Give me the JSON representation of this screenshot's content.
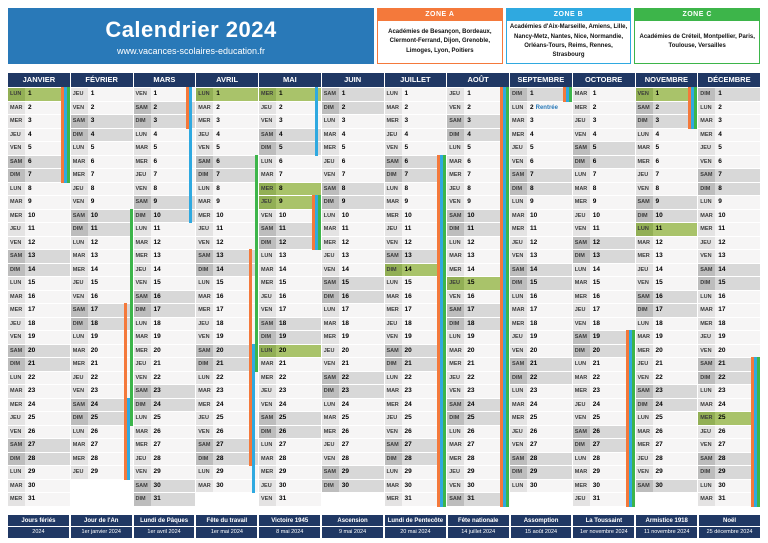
{
  "header": {
    "title": "Calendrier 2024",
    "url": "www.vacances-scolaires-education.fr"
  },
  "zones": [
    {
      "label": "ZONE A",
      "color": "#F4793B",
      "academies": "Académies de Besançon, Bordeaux, Clermont-Ferrand, Dijon, Grenoble, Limoges, Lyon, Poitiers"
    },
    {
      "label": "ZONE B",
      "color": "#2FA9E0",
      "academies": "Académies d'Aix-Marseille, Amiens, Lille, Nancy-Metz, Nantes, Nice, Normandie, Orléans-Tours, Reims, Rennes, Strasbourg"
    },
    {
      "label": "ZONE C",
      "color": "#3DB54A",
      "academies": "Académies de Créteil, Montpellier, Paris, Toulouse, Versailles"
    }
  ],
  "weekdays": [
    "LUN",
    "MAR",
    "MER",
    "JEU",
    "VEN",
    "SAM",
    "DIM"
  ],
  "months": [
    {
      "name": "JANVIER",
      "days": 31,
      "start": 0,
      "holidays": [
        1
      ],
      "notes": {},
      "vac": {
        "A": [
          [
            1,
            7
          ]
        ],
        "B": [
          [
            1,
            7
          ]
        ],
        "C": [
          [
            1,
            7
          ]
        ]
      }
    },
    {
      "name": "FÉVRIER",
      "days": 29,
      "start": 3,
      "holidays": [],
      "notes": {},
      "vac": {
        "A": [
          [
            17,
            29
          ]
        ],
        "B": [
          [
            24,
            29
          ]
        ],
        "C": [
          [
            10,
            25
          ]
        ]
      }
    },
    {
      "name": "MARS",
      "days": 31,
      "start": 4,
      "holidays": [],
      "notes": {},
      "vac": {
        "A": [
          [
            1,
            3
          ]
        ],
        "B": [
          [
            1,
            10
          ]
        ],
        "C": []
      }
    },
    {
      "name": "AVRIL",
      "days": 30,
      "start": 0,
      "holidays": [
        1
      ],
      "notes": {},
      "vac": {
        "A": [
          [
            13,
            28
          ]
        ],
        "B": [
          [
            20,
            30
          ]
        ],
        "C": [
          [
            6,
            21
          ]
        ]
      }
    },
    {
      "name": "MAI",
      "days": 31,
      "start": 2,
      "holidays": [
        1,
        8,
        9,
        20
      ],
      "notes": {},
      "vac": {
        "A": [
          [
            9,
            12
          ]
        ],
        "B": [
          [
            1,
            5
          ],
          [
            9,
            12
          ]
        ],
        "C": [
          [
            9,
            12
          ]
        ]
      }
    },
    {
      "name": "JUIN",
      "days": 30,
      "start": 5,
      "holidays": [],
      "notes": {},
      "vac": {
        "A": [],
        "B": [],
        "C": []
      }
    },
    {
      "name": "JUILLET",
      "days": 31,
      "start": 0,
      "holidays": [
        14
      ],
      "notes": {},
      "vac": {
        "A": [
          [
            6,
            31
          ]
        ],
        "B": [
          [
            6,
            31
          ]
        ],
        "C": [
          [
            6,
            31
          ]
        ]
      }
    },
    {
      "name": "AOÛT",
      "days": 31,
      "start": 3,
      "holidays": [
        15
      ],
      "notes": {},
      "vac": {
        "A": [
          [
            1,
            31
          ]
        ],
        "B": [
          [
            1,
            31
          ]
        ],
        "C": [
          [
            1,
            31
          ]
        ]
      }
    },
    {
      "name": "SEPTEMBRE",
      "days": 30,
      "start": 6,
      "holidays": [],
      "notes": {
        "2": "Rentrée"
      },
      "vac": {
        "A": [
          [
            1,
            1
          ]
        ],
        "B": [
          [
            1,
            1
          ]
        ],
        "C": [
          [
            1,
            1
          ]
        ]
      }
    },
    {
      "name": "OCTOBRE",
      "days": 31,
      "start": 1,
      "holidays": [],
      "notes": {},
      "vac": {
        "A": [
          [
            19,
            31
          ]
        ],
        "B": [
          [
            19,
            31
          ]
        ],
        "C": [
          [
            19,
            31
          ]
        ]
      }
    },
    {
      "name": "NOVEMBRE",
      "days": 30,
      "start": 4,
      "holidays": [
        1,
        11
      ],
      "notes": {},
      "vac": {
        "A": [
          [
            1,
            3
          ]
        ],
        "B": [
          [
            1,
            3
          ]
        ],
        "C": [
          [
            1,
            3
          ]
        ]
      }
    },
    {
      "name": "DÉCEMBRE",
      "days": 31,
      "start": 6,
      "holidays": [
        25
      ],
      "notes": {},
      "vac": {
        "A": [
          [
            21,
            31
          ]
        ],
        "B": [
          [
            21,
            31
          ]
        ],
        "C": [
          [
            21,
            31
          ]
        ]
      }
    }
  ],
  "legend": [
    {
      "title": "Jours fériés",
      "date": "2024"
    },
    {
      "title": "Jour de l'An",
      "date": "1er janvier 2024"
    },
    {
      "title": "Lundi de Pâques",
      "date": "1er avril 2024"
    },
    {
      "title": "Fête du travail",
      "date": "1er mai 2024"
    },
    {
      "title": "Victoire 1945",
      "date": "8 mai 2024"
    },
    {
      "title": "Ascension",
      "date": "9 mai 2024"
    },
    {
      "title": "Lundi de Pentecôte",
      "date": "20 mai 2024"
    },
    {
      "title": "Fête nationale",
      "date": "14 juillet 2024"
    },
    {
      "title": "Assomption",
      "date": "15 août 2024"
    },
    {
      "title": "La Toussaint",
      "date": "1er novembre 2024"
    },
    {
      "title": "Armistice 1918",
      "date": "11 novembre 2024"
    },
    {
      "title": "Noël",
      "date": "25 décembre 2024"
    }
  ],
  "colors": {
    "header_blue": "#2979B8",
    "navy": "#203864",
    "zone_a": "#F4793B",
    "zone_b": "#2FA9E0",
    "zone_c": "#3DB54A",
    "holiday_green": "#A9C36A",
    "weekend_gray": "#D8D8D8"
  }
}
